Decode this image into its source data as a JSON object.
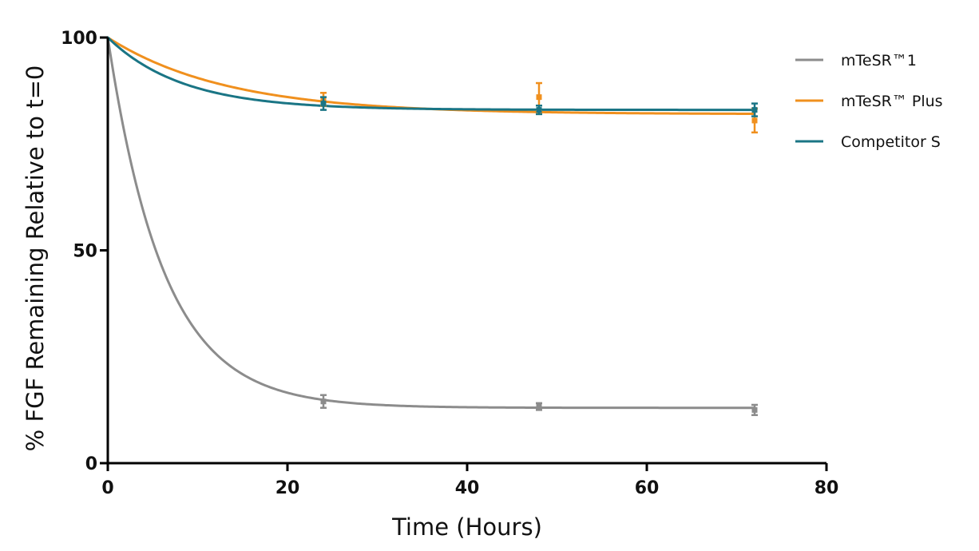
{
  "chart_data": {
    "type": "line",
    "title": "",
    "xlabel": "Time (Hours)",
    "ylabel": "% FGF Remaining Relative to t=0",
    "xlim": [
      0,
      80
    ],
    "ylim": [
      0,
      100
    ],
    "x_ticks": [
      "0",
      "20",
      "40",
      "60",
      "80"
    ],
    "y_ticks": [
      "0",
      "50",
      "100"
    ],
    "grid": false,
    "legend_position": "top-right",
    "series": [
      {
        "name": "mTeSR™1",
        "color": "#8c8c8c",
        "fit": {
          "plateau": 13.0,
          "rate": 0.16
        },
        "points": [
          {
            "x": 0,
            "y": 100,
            "err": 0
          },
          {
            "x": 24,
            "y": 14.5,
            "err": 1.5
          },
          {
            "x": 48,
            "y": 13.3,
            "err": 0.8
          },
          {
            "x": 72,
            "y": 12.5,
            "err": 1.2
          }
        ]
      },
      {
        "name": "mTeSR™ Plus",
        "color": "#f0901e",
        "fit": {
          "plateau": 82.0,
          "rate": 0.075
        },
        "points": [
          {
            "x": 0,
            "y": 100,
            "err": 0
          },
          {
            "x": 24,
            "y": 85.5,
            "err": 1.5
          },
          {
            "x": 48,
            "y": 86.0,
            "err": 3.3
          },
          {
            "x": 72,
            "y": 80.5,
            "err": 2.8
          }
        ]
      },
      {
        "name": "Competitor S",
        "color": "#1a7585",
        "fit": {
          "plateau": 83.0,
          "rate": 0.12
        },
        "points": [
          {
            "x": 0,
            "y": 100,
            "err": 0
          },
          {
            "x": 24,
            "y": 84.5,
            "err": 1.5
          },
          {
            "x": 48,
            "y": 83.0,
            "err": 1.0
          },
          {
            "x": 72,
            "y": 83.0,
            "err": 1.5
          }
        ]
      }
    ]
  }
}
